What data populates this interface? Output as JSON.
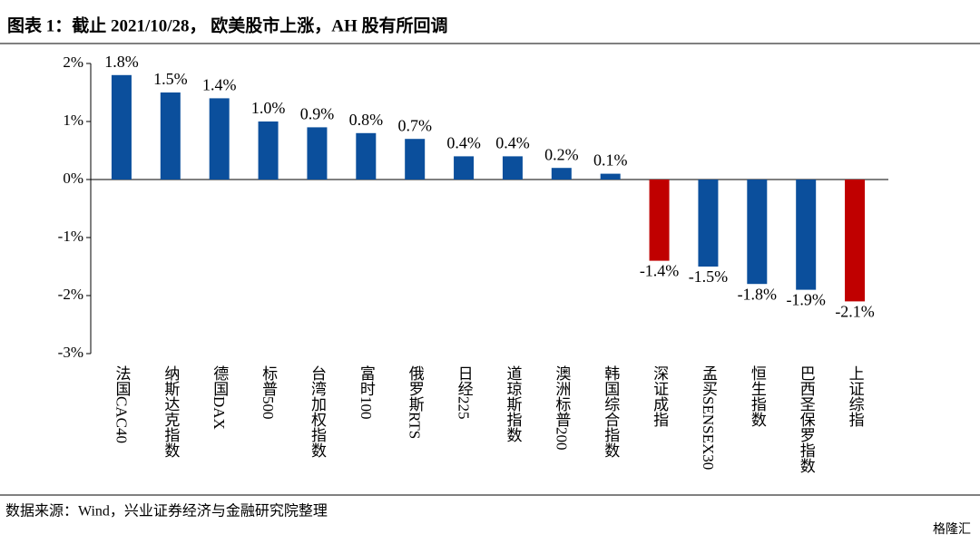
{
  "chart_data": {
    "type": "bar",
    "title": "图表 1：截止 2021/10/28， 欧美股市上涨，AH 股有所回调",
    "source": "数据来源：Wind，兴业证券经济与金融研究院整理",
    "watermark": "格隆汇",
    "categories": [
      "法国CAC40",
      "纳斯达克指数",
      "德国DAX",
      "标普500",
      "台湾加权指数",
      "富时100",
      "俄罗斯RTS",
      "日经225",
      "道琼斯指数",
      "澳洲标普200",
      "韩国综合指数",
      "深证成指",
      "孟买SENSEX30",
      "恒生指数",
      "巴西圣保罗指数",
      "上证综指"
    ],
    "values": [
      1.8,
      1.5,
      1.4,
      1.0,
      0.9,
      0.8,
      0.7,
      0.4,
      0.4,
      0.2,
      0.1,
      -1.4,
      -1.5,
      -1.8,
      -1.9,
      -2.1
    ],
    "value_labels": [
      "1.8%",
      "1.5%",
      "1.4%",
      "1.0%",
      "0.9%",
      "0.8%",
      "0.7%",
      "0.4%",
      "0.4%",
      "0.2%",
      "0.1%",
      "-1.4%",
      "-1.5%",
      "-1.8%",
      "-1.9%",
      "-2.1%"
    ],
    "colors": [
      "#0b4f9c",
      "#0b4f9c",
      "#0b4f9c",
      "#0b4f9c",
      "#0b4f9c",
      "#0b4f9c",
      "#0b4f9c",
      "#0b4f9c",
      "#0b4f9c",
      "#0b4f9c",
      "#0b4f9c",
      "#c00000",
      "#0b4f9c",
      "#0b4f9c",
      "#0b4f9c",
      "#c00000"
    ],
    "ylim": [
      -3,
      2
    ],
    "yticks": [
      {
        "value": -3,
        "label": "-3%"
      },
      {
        "value": -2,
        "label": "-2%"
      },
      {
        "value": -1,
        "label": "-1%"
      },
      {
        "value": 0,
        "label": "0%"
      },
      {
        "value": 1,
        "label": "1%"
      },
      {
        "value": 2,
        "label": "2%"
      }
    ]
  }
}
